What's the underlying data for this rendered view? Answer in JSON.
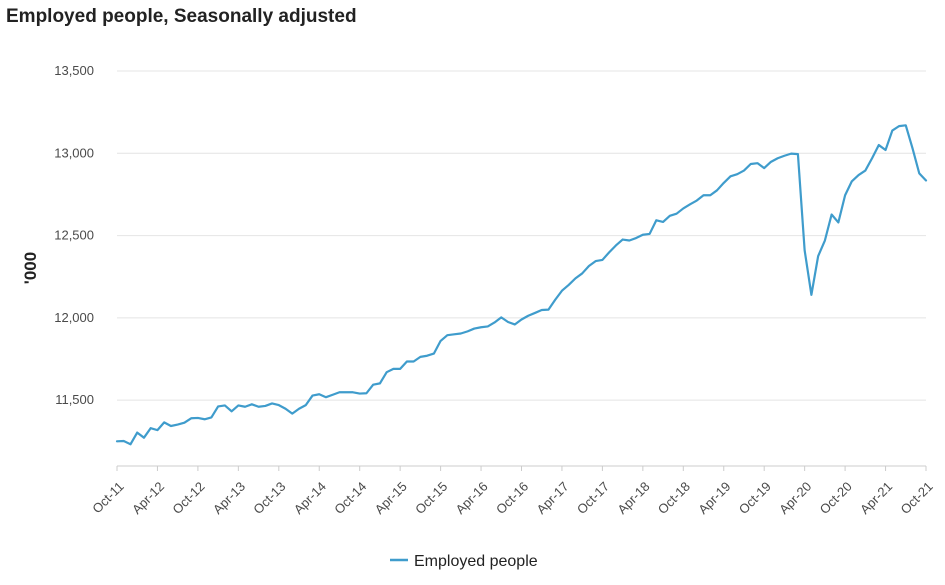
{
  "chart_data": {
    "type": "line",
    "title": "Employed people, Seasonally adjusted",
    "xlabel": "",
    "ylabel": "'000",
    "ylim": [
      11100,
      13500
    ],
    "yticks": [
      "11,500",
      "12,000",
      "12,500",
      "13,000",
      "13,500"
    ],
    "ytick_values": [
      11500,
      12000,
      12500,
      13000,
      13500
    ],
    "xticks": [
      "Oct-11",
      "Apr-12",
      "Oct-12",
      "Apr-13",
      "Oct-13",
      "Apr-14",
      "Oct-14",
      "Apr-15",
      "Oct-15",
      "Apr-16",
      "Oct-16",
      "Apr-17",
      "Oct-17",
      "Apr-18",
      "Oct-18",
      "Apr-19",
      "Oct-19",
      "Apr-20",
      "Oct-20",
      "Apr-21",
      "Oct-21"
    ],
    "grid": true,
    "legend_position": "bottom-center",
    "colors": {
      "series": "#3f9ccc",
      "grid": "#e4e4e4",
      "axis": "#cccccc"
    },
    "series": [
      {
        "name": "Employed people",
        "start": "Oct-11",
        "frequency": "monthly",
        "values": [
          11250,
          11252,
          11232,
          11303,
          11272,
          11330,
          11318,
          11365,
          11343,
          11352,
          11363,
          11390,
          11392,
          11384,
          11395,
          11462,
          11468,
          11432,
          11468,
          11460,
          11475,
          11460,
          11465,
          11480,
          11470,
          11448,
          11418,
          11448,
          11470,
          11528,
          11536,
          11518,
          11533,
          11548,
          11548,
          11548,
          11540,
          11542,
          11594,
          11602,
          11670,
          11690,
          11690,
          11735,
          11735,
          11763,
          11770,
          11783,
          11860,
          11895,
          11900,
          11905,
          11918,
          11935,
          11943,
          11948,
          11972,
          12003,
          11975,
          11960,
          11990,
          12013,
          12030,
          12048,
          12050,
          12110,
          12165,
          12200,
          12240,
          12270,
          12315,
          12345,
          12352,
          12398,
          12440,
          12476,
          12470,
          12485,
          12505,
          12510,
          12593,
          12583,
          12620,
          12633,
          12665,
          12690,
          12713,
          12745,
          12745,
          12775,
          12820,
          12860,
          12873,
          12895,
          12935,
          12940,
          12910,
          12948,
          12970,
          12985,
          12998,
          12995,
          12410,
          12140,
          12375,
          12470,
          12628,
          12580,
          12745,
          12830,
          12868,
          12895,
          12970,
          13050,
          13020,
          13138,
          13165,
          13170,
          13030,
          12878,
          12835
        ]
      }
    ]
  }
}
